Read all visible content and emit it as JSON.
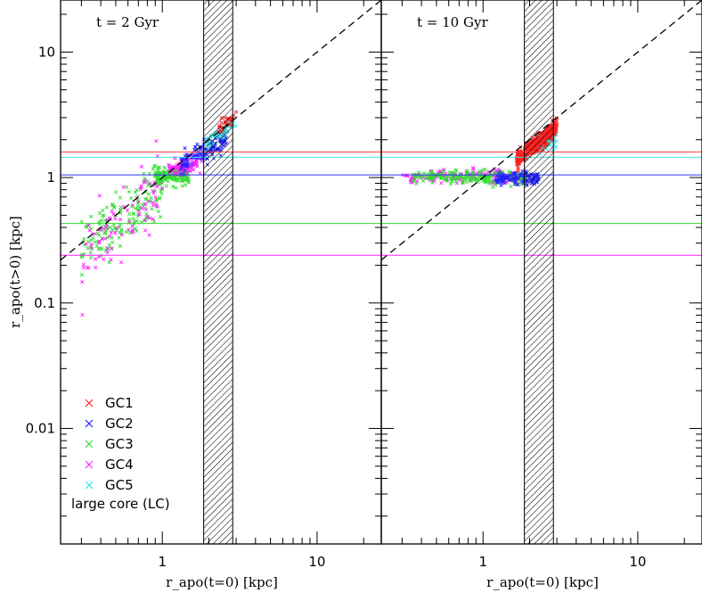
{
  "chart_data": [
    {
      "type": "scatter",
      "panel_label": "t = 2 Gyr",
      "xlabel": "r_apo(t=0) [kpc]",
      "ylabel": "r_apo(t>0) [kpc]",
      "xscale": "log",
      "yscale": "log",
      "xlim": [
        0.22,
        26
      ],
      "ylim": [
        0.0012,
        26
      ],
      "x_ticks": [
        "1",
        "10"
      ],
      "y_ticks": [
        "0.01",
        "0.1",
        "1",
        "10"
      ],
      "diagonal": "y = x (dashed)",
      "shaded_band_x": [
        1.85,
        2.85
      ],
      "reference_lines": [
        {
          "series": "GC1",
          "y": 1.6,
          "color": "#ff4040"
        },
        {
          "series": "GC5",
          "y": 1.45,
          "color": "#40e0e0"
        },
        {
          "series": "GC2",
          "y": 1.05,
          "color": "#3030ff"
        },
        {
          "series": "GC3",
          "y": 0.43,
          "color": "#30dd30"
        },
        {
          "series": "GC4",
          "y": 0.24,
          "color": "#ff20ff"
        }
      ],
      "clusters": [
        {
          "series": "GC3",
          "x_range": [
            0.3,
            1.0
          ],
          "y_fn": "0.9*x^1.05",
          "n": 160,
          "spread": 0.25
        },
        {
          "series": "GC4",
          "x_range": [
            0.3,
            1.0
          ],
          "y_fn": "0.88*x^1.1",
          "n": 90,
          "spread": 0.3
        },
        {
          "series": "GC3",
          "x_range": [
            0.9,
            1.5
          ],
          "y_fn": "1.02",
          "n": 160,
          "spread": 0.07
        },
        {
          "series": "GC4",
          "x_range": [
            1.1,
            1.8
          ],
          "y_fn": "1.1*x^0.35",
          "n": 90,
          "spread": 0.08
        },
        {
          "series": "GC2",
          "x_range": [
            1.3,
            2.6
          ],
          "y_fn": "1.0*x^0.75",
          "n": 130,
          "spread": 0.09
        },
        {
          "series": "GC5",
          "x_range": [
            1.9,
            3.0
          ],
          "y_fn": "0.95*x",
          "n": 60,
          "spread": 0.06
        },
        {
          "series": "GC1",
          "x_range": [
            2.3,
            3.0
          ],
          "y_fn": "1.05*x",
          "n": 30,
          "spread": 0.05
        }
      ],
      "legend": {
        "placement": "bottom-left",
        "entries": [
          {
            "label": "GC1",
            "color": "#ff2020"
          },
          {
            "label": "GC2",
            "color": "#2020ff"
          },
          {
            "label": "GC3",
            "color": "#30dd30"
          },
          {
            "label": "GC4",
            "color": "#ff20ff"
          },
          {
            "label": "GC5",
            "color": "#30e0e0"
          }
        ],
        "note": "large core (LC)"
      }
    },
    {
      "type": "scatter",
      "panel_label": "t = 10 Gyr",
      "xlabel": "r_apo(t=0) [kpc]",
      "xscale": "log",
      "yscale": "log",
      "xlim": [
        0.22,
        26
      ],
      "ylim": [
        0.0012,
        26
      ],
      "x_ticks": [
        "1",
        "10"
      ],
      "diagonal": "y = x (dashed)",
      "shaded_band_x": [
        1.85,
        2.85
      ],
      "reference_lines": [
        {
          "series": "GC1",
          "y": 1.6,
          "color": "#ff4040"
        },
        {
          "series": "GC5",
          "y": 1.45,
          "color": "#40e0e0"
        },
        {
          "series": "GC2",
          "y": 1.05,
          "color": "#3030ff"
        },
        {
          "series": "GC3",
          "y": 0.43,
          "color": "#30dd30"
        },
        {
          "series": "GC4",
          "y": 0.24,
          "color": "#ff20ff"
        }
      ],
      "clusters": [
        {
          "series": "GC4",
          "x_range": [
            0.3,
            1.7
          ],
          "y_fn": "1.02",
          "n": 150,
          "spread": 0.06
        },
        {
          "series": "GC3",
          "x_range": [
            0.35,
            1.9
          ],
          "y_fn": "1.0",
          "n": 200,
          "spread": 0.06
        },
        {
          "series": "GC2",
          "x_range": [
            1.2,
            2.3
          ],
          "y_fn": "0.98",
          "n": 120,
          "spread": 0.06
        },
        {
          "series": "GC5",
          "x_range": [
            2.2,
            3.0
          ],
          "y_fn": "1.1*x^0.6",
          "n": 50,
          "spread": 0.08
        },
        {
          "series": "GC1",
          "x_range": [
            1.65,
            3.0
          ],
          "y_fn": "0.85*x",
          "n": 420,
          "spread": 0.07
        }
      ]
    }
  ]
}
